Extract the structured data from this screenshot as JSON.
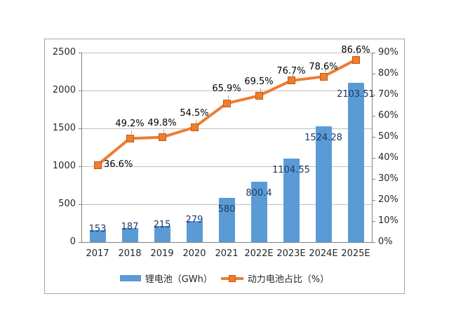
{
  "page": {
    "background": "#ffffff"
  },
  "chart_data": {
    "type": "bar",
    "subtype": "combo-bar-line-dual-axis",
    "title": "",
    "categories": [
      "2017",
      "2018",
      "2019",
      "2020",
      "2021",
      "2022E",
      "2023E",
      "2024E",
      "2025E"
    ],
    "series": [
      {
        "name": "锂电池（GWh）",
        "type": "bar",
        "axis": "left",
        "color": "#5b9bd5",
        "label_color": "#1f3864",
        "values": [
          153,
          187,
          215,
          279,
          580,
          800.4,
          1104.55,
          1524.28,
          2103.51
        ],
        "labels": [
          "153",
          "187",
          "215",
          "279",
          "580",
          "800.4",
          "1104.55",
          "1524.28",
          "2103.51"
        ]
      },
      {
        "name": "动力电池占比（%）",
        "type": "line",
        "axis": "right",
        "color": "#ed7d31",
        "marker": "square",
        "marker_border_color": "#c55a11",
        "label_color": "#000000",
        "values": [
          36.6,
          49.2,
          49.8,
          54.5,
          65.9,
          69.5,
          76.7,
          78.6,
          86.6
        ],
        "labels": [
          "36.6%",
          "49.2%",
          "49.8%",
          "54.5%",
          "65.9%",
          "69.5%",
          "76.7%",
          "78.6%",
          "86.6%"
        ]
      }
    ],
    "left_axis": {
      "min": 0,
      "max": 2500,
      "ticks": [
        "0",
        "500",
        "1000",
        "1500",
        "2000",
        "2500"
      ]
    },
    "right_axis": {
      "min": 0,
      "max": 90,
      "ticks": [
        "0%",
        "10%",
        "20%",
        "30%",
        "40%",
        "50%",
        "60%",
        "70%",
        "80%",
        "90%"
      ]
    },
    "grid": true,
    "grid_color": "#bfbfbf",
    "axis_color": "#808080",
    "frame_border_color": "#a6a6a6",
    "legend_position": "bottom"
  }
}
